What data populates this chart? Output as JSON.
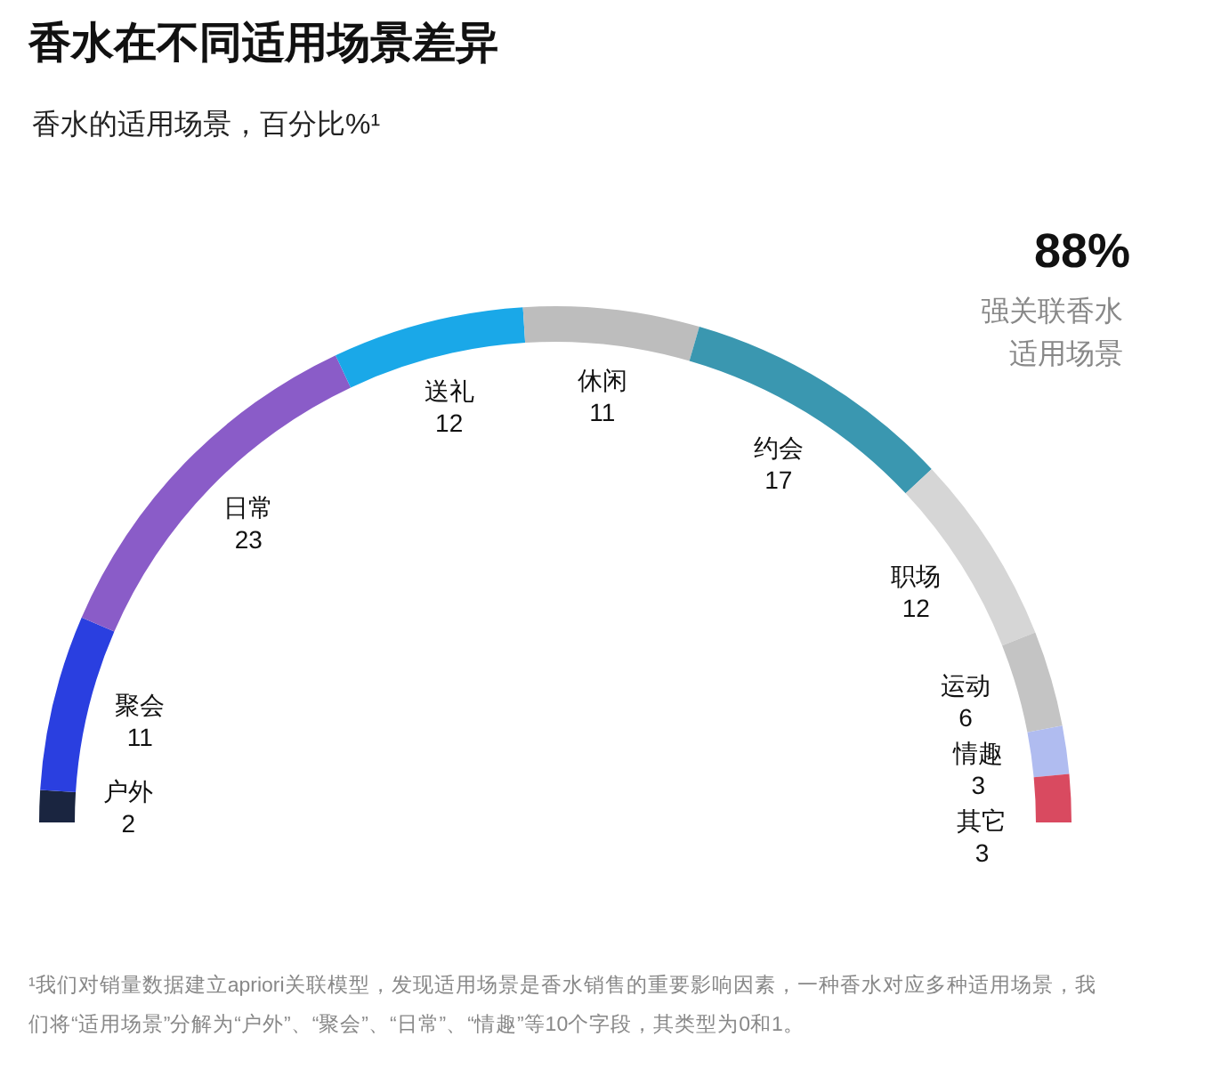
{
  "chart_data": {
    "type": "donut",
    "title": "香水在不同适用场景差异",
    "subtitle": "香水的适用场景，百分比%¹",
    "categories": [
      "户外",
      "聚会",
      "日常",
      "送礼",
      "休闲",
      "约会",
      "职场",
      "运动",
      "情趣",
      "其它"
    ],
    "values": [
      2,
      11,
      23,
      12,
      11,
      17,
      12,
      6,
      3,
      3
    ],
    "colors": [
      "#1a2540",
      "#2a3fe0",
      "#8a5cc8",
      "#1aa8e8",
      "#bdbdbd",
      "#3a97b0",
      "#d6d6d6",
      "#c4c4c4",
      "#b0bcf0",
      "#d94a60"
    ],
    "data_labels": true,
    "annotations": [
      "88%",
      "强关联香水适用场景",
      "¹我们对销量数据建立apriori关联模型，发现适用场景是香水销售的重要影响因素，一种香水对应多种适用场景，我们将“适用场景”分解为“户外”、“聚会”、“日常”、“情趣”等10个字段，其类型为0和1。"
    ]
  }
}
